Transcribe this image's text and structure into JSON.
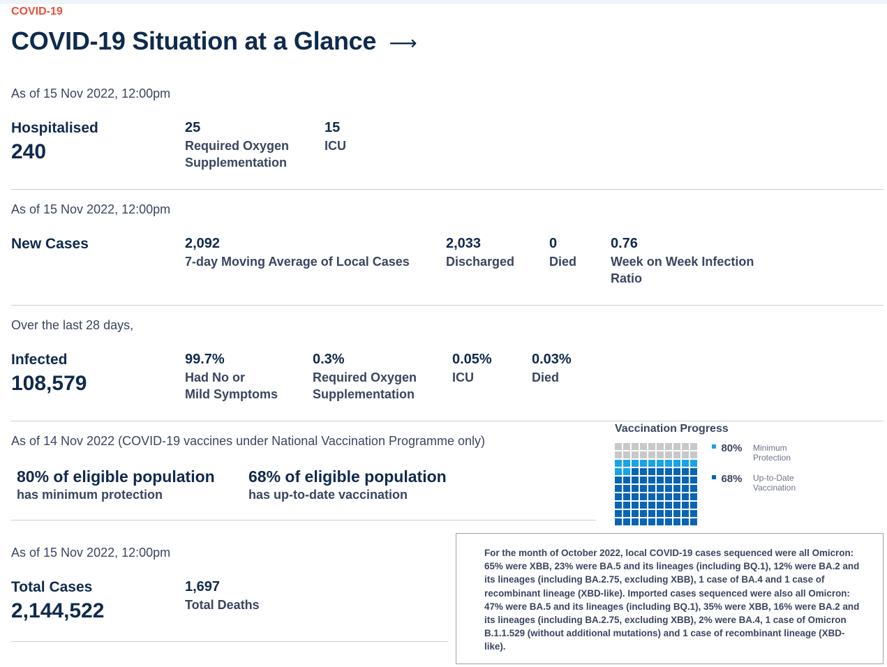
{
  "header": {
    "eyebrow": "COVID-19",
    "title": "COVID-19 Situation at a Glance",
    "arrow": "⟶"
  },
  "hospitalised": {
    "as_of": "As of 15 Nov 2022, 12:00pm",
    "label": "Hospitalised",
    "value": "240",
    "stats": [
      {
        "value": "25",
        "label_lines": [
          "Required Oxygen",
          "Supplementation"
        ]
      },
      {
        "value": "15",
        "label_lines": [
          "ICU"
        ]
      }
    ]
  },
  "new_cases": {
    "as_of": "As of 15 Nov 2022, 12:00pm",
    "label": "New Cases",
    "stats": [
      {
        "value": "2,092",
        "label_lines": [
          "7-day Moving Average of Local Cases"
        ]
      },
      {
        "value": "2,033",
        "label_lines": [
          "Discharged"
        ]
      },
      {
        "value": "0",
        "label_lines": [
          "Died"
        ]
      },
      {
        "value": "0.76",
        "label_lines": [
          "Week on Week Infection",
          "Ratio"
        ]
      }
    ]
  },
  "infected": {
    "as_of": "Over the last 28 days,",
    "label": "Infected",
    "value": "108,579",
    "stats": [
      {
        "value": "99.7%",
        "label_lines": [
          "Had No or",
          "Mild Symptoms"
        ]
      },
      {
        "value": "0.3%",
        "label_lines": [
          "Required Oxygen",
          "Supplementation"
        ]
      },
      {
        "value": "0.05%",
        "label_lines": [
          "ICU"
        ]
      },
      {
        "value": "0.03%",
        "label_lines": [
          "Died"
        ]
      }
    ]
  },
  "vaccination": {
    "as_of": "As of 14 Nov 2022 (COVID-19 vaccines under National Vaccination Programme only)",
    "minimum": {
      "title": "80% of eligible population",
      "sub": "has minimum protection"
    },
    "uptodate": {
      "title": "68% of eligible population",
      "sub": "has up-to-date vaccination"
    },
    "chart_title": "Vaccination Progress",
    "legend": [
      {
        "pct": "80%",
        "label_lines": [
          "Minimum",
          "Protection"
        ],
        "color": "#1aa3e8"
      },
      {
        "pct": "68%",
        "label_lines": [
          "Up-to-Date",
          "Vaccination"
        ],
        "color": "#0a64b4"
      }
    ],
    "colors": {
      "empty": "#c8c8c8",
      "minimum": "#1aa3e8",
      "uptodate": "#0a64b4"
    }
  },
  "chart_data": {
    "type": "waffle",
    "title": "Vaccination Progress",
    "total_cells": 100,
    "series": [
      {
        "name": "Minimum Protection",
        "value": 80
      },
      {
        "name": "Up-to-Date Vaccination",
        "value": 68
      }
    ]
  },
  "totals": {
    "as_of": "As of 15 Nov 2022, 12:00pm",
    "label": "Total Cases",
    "value": "2,144,522",
    "deaths_value": "1,697",
    "deaths_label": "Total Deaths"
  },
  "sequencing_note": "For the month of October 2022, local COVID-19 cases sequenced were all Omicron: 65% were XBB, 23% were BA.5 and its lineages (including BQ.1), 12% were BA.2 and its lineages (including BA.2.75, excluding XBB), 1 case of BA.4 and 1 case of recombinant lineage (XBD-like). Imported cases sequenced were also all Omicron: 47% were BA.5 and its lineages (including BQ.1), 35% were XBB, 16% were BA.2 and its lineages (including BA.2.75, excluding XBB), 2% were BA.4, 1 case of Omicron B.1.1.529 (without additional mutations) and 1 case of recombinant lineage (XBD-like)."
}
